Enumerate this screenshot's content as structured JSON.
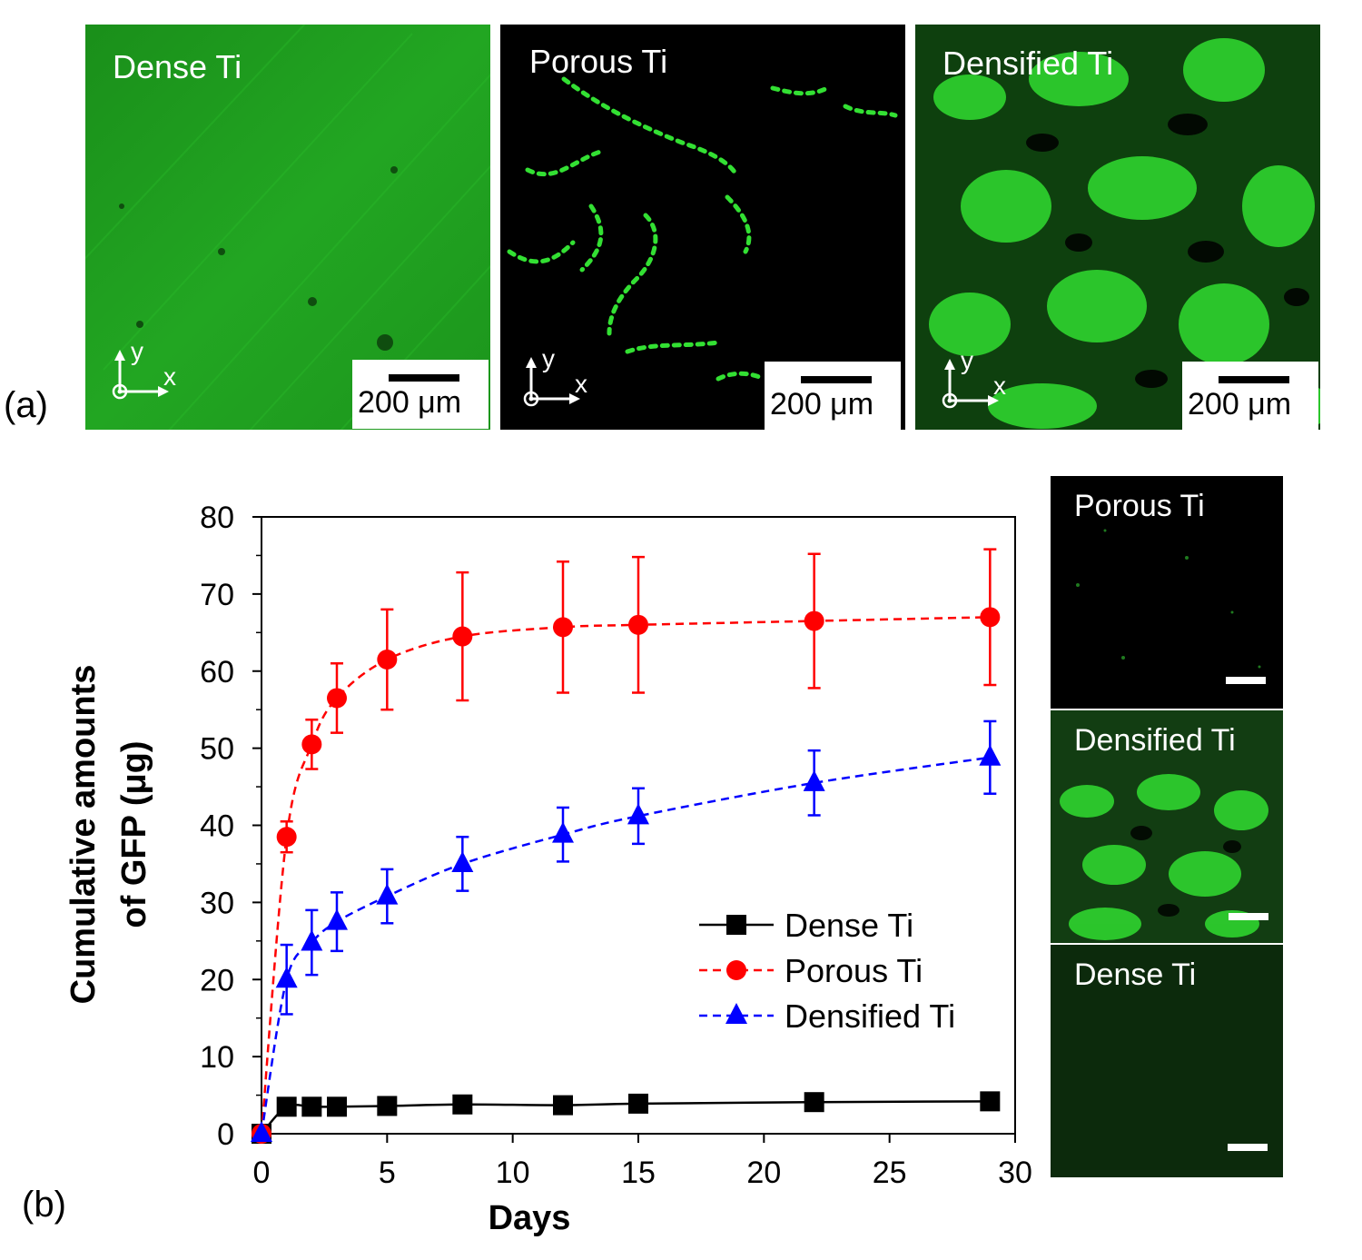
{
  "panel_a": {
    "letter": "(a)",
    "images": [
      {
        "label": "Dense Ti",
        "scale": "200 μm",
        "axis_y": "y",
        "axis_x": "x"
      },
      {
        "label": "Porous Ti",
        "scale": "200 μm",
        "axis_y": "y",
        "axis_x": "x"
      },
      {
        "label": "Densified Ti",
        "scale": "200 μm",
        "axis_y": "y",
        "axis_x": "x"
      }
    ]
  },
  "panel_b": {
    "letter": "(b)",
    "side_images": [
      {
        "label": "Porous Ti"
      },
      {
        "label": "Densified Ti"
      },
      {
        "label": "Dense Ti"
      }
    ]
  },
  "colors": {
    "dense": "#000000",
    "porous": "#ff0000",
    "densified": "#0000ff",
    "fluor": "#22dd22"
  },
  "chart_data": {
    "type": "line",
    "title": "",
    "xlabel": "Days",
    "ylabel_line1": "Cumulative amounts",
    "ylabel_line2": "of GFP (μg)",
    "xlim": [
      0,
      30
    ],
    "ylim": [
      0,
      80
    ],
    "xticks": [
      0,
      5,
      10,
      15,
      20,
      25,
      30
    ],
    "yticks": [
      0,
      10,
      20,
      30,
      40,
      50,
      60,
      70,
      80
    ],
    "legend_position": "center-right",
    "grid": false,
    "series": [
      {
        "name": "Dense Ti",
        "marker": "square",
        "line": "solid",
        "x": [
          0,
          1,
          2,
          3,
          5,
          8,
          12,
          15,
          22,
          29
        ],
        "y": [
          0,
          3.5,
          3.5,
          3.5,
          3.6,
          3.8,
          3.7,
          3.9,
          4.1,
          4.2
        ],
        "err": [
          0,
          0,
          0,
          0,
          0,
          0,
          0,
          0,
          0,
          0
        ]
      },
      {
        "name": "Porous Ti",
        "marker": "circle",
        "line": "dashed",
        "x": [
          0,
          1,
          2,
          3,
          5,
          8,
          12,
          15,
          22,
          29
        ],
        "y": [
          0,
          38.5,
          50.5,
          56.5,
          61.5,
          64.5,
          65.7,
          66,
          66.5,
          67
        ],
        "err": [
          0,
          2,
          3.2,
          4.5,
          6.5,
          8.3,
          8.5,
          8.8,
          8.7,
          8.8
        ]
      },
      {
        "name": "Densified Ti",
        "marker": "triangle",
        "line": "dashed",
        "x": [
          0,
          1,
          2,
          3,
          5,
          8,
          12,
          15,
          22,
          29
        ],
        "y": [
          0,
          20,
          24.8,
          27.5,
          30.8,
          35,
          38.8,
          41.2,
          45.5,
          48.8
        ],
        "err": [
          0,
          4.5,
          4.2,
          3.8,
          3.5,
          3.5,
          3.5,
          3.6,
          4.2,
          4.7
        ]
      }
    ]
  }
}
